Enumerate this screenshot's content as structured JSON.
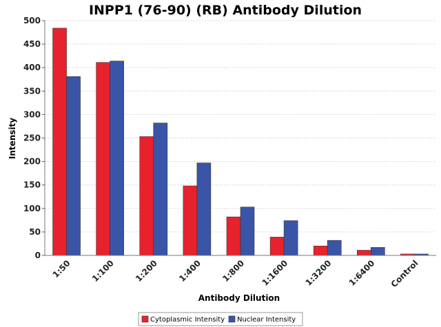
{
  "chart_data": {
    "type": "bar",
    "title": "INPP1 (76-90) (RB) Antibody Dilution",
    "xlabel": "Antibody Dilution",
    "ylabel": "Intensity",
    "ylim": [
      0,
      500
    ],
    "yticks": [
      0,
      50,
      100,
      150,
      200,
      250,
      300,
      350,
      400,
      450,
      500
    ],
    "grid": true,
    "legend_position": "bottom",
    "categories": [
      "1:50",
      "1:100",
      "1:200",
      "1:400",
      "1:800",
      "1:1600",
      "1:3200",
      "1:6400",
      "Control"
    ],
    "series": [
      {
        "name": "Cytoplasmic Intensity",
        "color": "#e8222c",
        "values": [
          484,
          411,
          253,
          148,
          82,
          39,
          20,
          11,
          3
        ]
      },
      {
        "name": "Nuclear Intensity",
        "color": "#3a55a8",
        "values": [
          381,
          414,
          282,
          197,
          103,
          74,
          32,
          17,
          3
        ]
      }
    ]
  }
}
